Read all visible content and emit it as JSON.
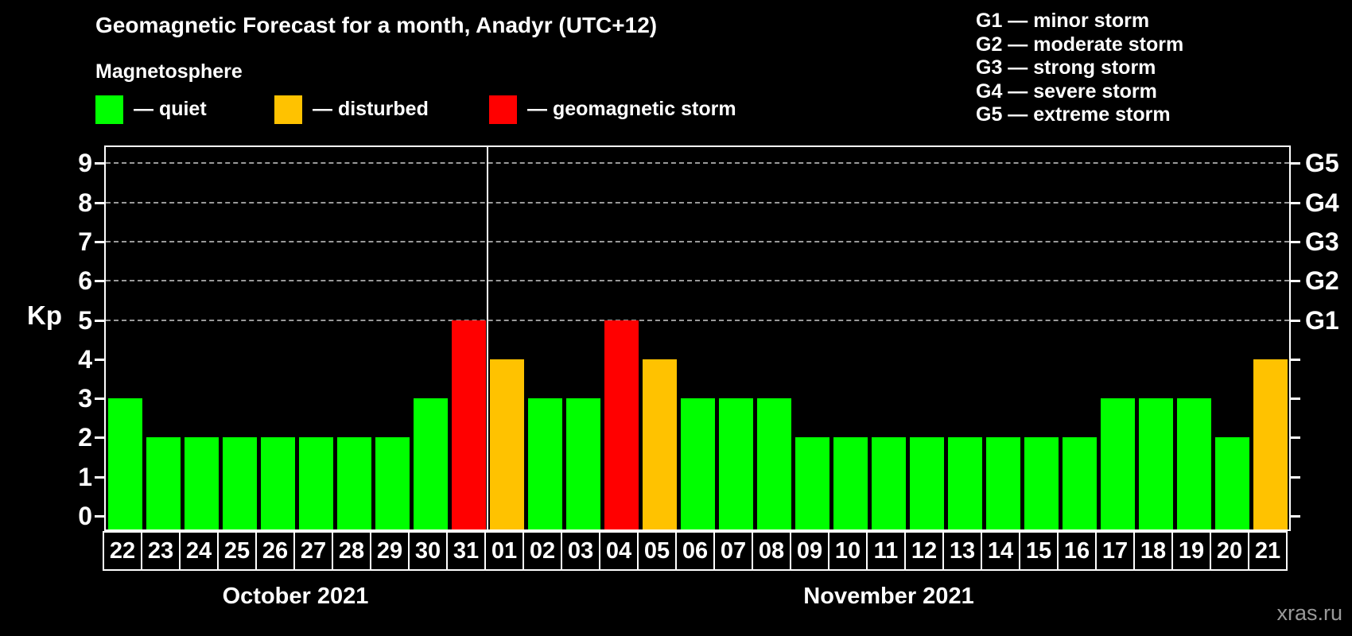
{
  "title": "Geomagnetic Forecast for a month, Anadyr (UTC+12)",
  "subtitle": "Magnetosphere",
  "watermark": "xras.ru",
  "colors": {
    "background": "#000000",
    "quiet": "#00ff00",
    "disturbed": "#ffc200",
    "storm": "#ff0000",
    "axis": "#ffffff",
    "grid": "#9a9a9a",
    "watermark": "#999999"
  },
  "legend": [
    {
      "status": "quiet",
      "label": "— quiet"
    },
    {
      "status": "disturbed",
      "label": "— disturbed"
    },
    {
      "status": "storm",
      "label": "— geomagnetic storm"
    }
  ],
  "storm_scale_legend": [
    {
      "label": "G1 — minor storm"
    },
    {
      "label": "G2 — moderate storm"
    },
    {
      "label": "G3 — strong storm"
    },
    {
      "label": "G4 — severe storm"
    },
    {
      "label": "G5 — extreme storm"
    }
  ],
  "chart_data": {
    "type": "bar",
    "title": "Geomagnetic Forecast for a month, Anadyr (UTC+12)",
    "ylabel": "Kp",
    "ylim": [
      0,
      9
    ],
    "yticks": [
      0,
      1,
      2,
      3,
      4,
      5,
      6,
      7,
      8,
      9
    ],
    "grid": "dashed horizontal lines at Kp 5-9 only",
    "gridlines_at_kp": [
      5,
      6,
      7,
      8,
      9
    ],
    "right_axis_labels": [
      {
        "kp": 5,
        "label": "G1"
      },
      {
        "kp": 6,
        "label": "G2"
      },
      {
        "kp": 7,
        "label": "G3"
      },
      {
        "kp": 8,
        "label": "G4"
      },
      {
        "kp": 9,
        "label": "G5"
      }
    ],
    "months": [
      {
        "label": "October 2021",
        "days_count": 10
      },
      {
        "label": "November 2021",
        "days_count": 21
      }
    ],
    "days": [
      {
        "day": "22",
        "kp": 3,
        "status": "quiet"
      },
      {
        "day": "23",
        "kp": 2,
        "status": "quiet"
      },
      {
        "day": "24",
        "kp": 2,
        "status": "quiet"
      },
      {
        "day": "25",
        "kp": 2,
        "status": "quiet"
      },
      {
        "day": "26",
        "kp": 2,
        "status": "quiet"
      },
      {
        "day": "27",
        "kp": 2,
        "status": "quiet"
      },
      {
        "day": "28",
        "kp": 2,
        "status": "quiet"
      },
      {
        "day": "29",
        "kp": 2,
        "status": "quiet"
      },
      {
        "day": "30",
        "kp": 3,
        "status": "quiet"
      },
      {
        "day": "31",
        "kp": 5,
        "status": "storm"
      },
      {
        "day": "01",
        "kp": 4,
        "status": "disturbed"
      },
      {
        "day": "02",
        "kp": 3,
        "status": "quiet"
      },
      {
        "day": "03",
        "kp": 3,
        "status": "quiet"
      },
      {
        "day": "04",
        "kp": 5,
        "status": "storm"
      },
      {
        "day": "05",
        "kp": 4,
        "status": "disturbed"
      },
      {
        "day": "06",
        "kp": 3,
        "status": "quiet"
      },
      {
        "day": "07",
        "kp": 3,
        "status": "quiet"
      },
      {
        "day": "08",
        "kp": 3,
        "status": "quiet"
      },
      {
        "day": "09",
        "kp": 2,
        "status": "quiet"
      },
      {
        "day": "10",
        "kp": 2,
        "status": "quiet"
      },
      {
        "day": "11",
        "kp": 2,
        "status": "quiet"
      },
      {
        "day": "12",
        "kp": 2,
        "status": "quiet"
      },
      {
        "day": "13",
        "kp": 2,
        "status": "quiet"
      },
      {
        "day": "14",
        "kp": 2,
        "status": "quiet"
      },
      {
        "day": "15",
        "kp": 2,
        "status": "quiet"
      },
      {
        "day": "16",
        "kp": 2,
        "status": "quiet"
      },
      {
        "day": "17",
        "kp": 3,
        "status": "quiet"
      },
      {
        "day": "18",
        "kp": 3,
        "status": "quiet"
      },
      {
        "day": "19",
        "kp": 3,
        "status": "quiet"
      },
      {
        "day": "20",
        "kp": 2,
        "status": "quiet"
      },
      {
        "day": "21",
        "kp": 4,
        "status": "disturbed"
      }
    ]
  }
}
